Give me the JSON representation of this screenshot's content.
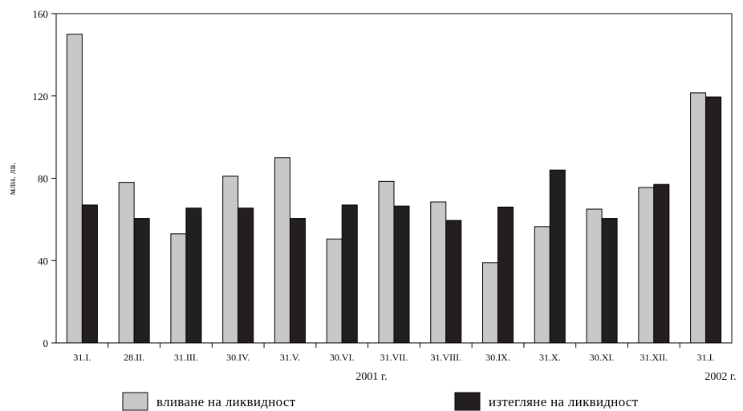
{
  "chart_data": {
    "type": "bar",
    "ylabel": "млн. лв.",
    "ylim": [
      0,
      160
    ],
    "yticks": [
      0,
      40,
      80,
      120,
      160
    ],
    "categories": [
      "31.I.",
      "28.II.",
      "31.III.",
      "30.IV.",
      "31.V.",
      "30.VI.",
      "31.VII.",
      "31.VIII.",
      "30.IX.",
      "31.X.",
      "30.XI.",
      "31.XII.",
      "31.I."
    ],
    "year_labels": [
      "2001 г.",
      "2002 г."
    ],
    "series": [
      {
        "name": "вливане на ликвидност",
        "color": "#c8c8c8",
        "values": [
          150,
          78,
          53,
          81,
          90,
          50.5,
          78.5,
          68.5,
          39,
          56.5,
          65,
          75.5,
          121.5
        ]
      },
      {
        "name": "изтегляне на ликвидност",
        "color": "#231f20",
        "values": [
          67,
          60.5,
          65.5,
          65.5,
          60.5,
          67,
          66.5,
          59.5,
          66,
          84,
          60.5,
          77,
          119.5
        ]
      }
    ],
    "grid": false,
    "legend": "bottom"
  }
}
